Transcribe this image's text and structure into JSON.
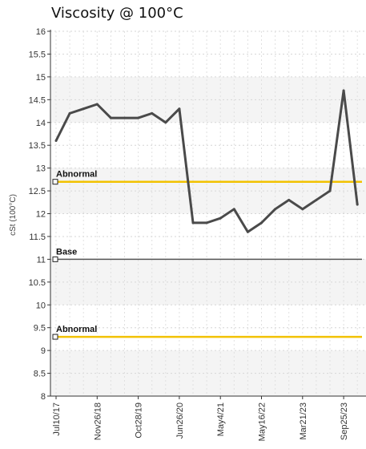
{
  "chart_data": {
    "type": "line",
    "title": "Viscosity @ 100°C",
    "ylabel": "cSt (100°C)",
    "xlabel": "",
    "ylim": [
      8,
      16
    ],
    "y_ticks": [
      "8",
      "8.5",
      "9",
      "9.5",
      "10",
      "10.5",
      "11",
      "11.5",
      "12",
      "12.5",
      "13",
      "13.5",
      "14",
      "14.5",
      "15",
      "15.5",
      "16"
    ],
    "x_tick_labels": [
      "Jul10/17",
      "Nov26/18",
      "Oct28/19",
      "Jun26/20",
      "May4/21",
      "May16/22",
      "Mar21/23",
      "Sep25/23"
    ],
    "x_tick_indices": [
      0,
      3,
      6,
      9,
      12,
      15,
      18,
      21
    ],
    "series": [
      {
        "color": "#4a4a4a",
        "values": [
          13.6,
          14.2,
          14.3,
          14.4,
          14.1,
          14.1,
          14.1,
          14.2,
          14.0,
          14.3,
          11.8,
          11.8,
          11.9,
          12.1,
          11.6,
          11.8,
          12.1,
          12.3,
          12.1,
          12.3,
          12.5,
          14.7,
          12.2
        ]
      }
    ],
    "reference_lines": [
      {
        "label": "Abnormal",
        "value": 12.7,
        "color": "#f2c200"
      },
      {
        "label": "Base",
        "value": 11.0,
        "color": "#555555"
      },
      {
        "label": "Abnormal",
        "value": 9.3,
        "color": "#f2c200"
      }
    ],
    "grid": true
  }
}
